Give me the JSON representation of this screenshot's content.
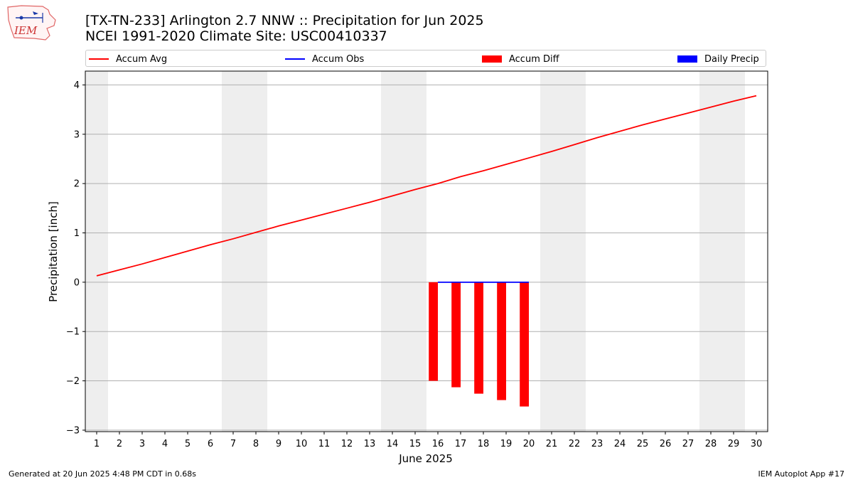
{
  "header": {
    "title_line1": "[TX-TN-233] Arlington 2.7 NNW :: Precipitation for Jun 2025",
    "title_line2": "NCEI 1991-2020 Climate Site: USC00410337"
  },
  "logo": {
    "text": "IEM"
  },
  "legend": {
    "items": [
      {
        "label": "Accum Avg",
        "color": "#ff0000",
        "kind": "line"
      },
      {
        "label": "Accum Obs",
        "color": "#0000ff",
        "kind": "line"
      },
      {
        "label": "Accum Diff",
        "color": "#ff0000",
        "kind": "box"
      },
      {
        "label": "Daily Precip",
        "color": "#0000ff",
        "kind": "box"
      }
    ]
  },
  "footer": {
    "left": "Generated at 20 Jun 2025 4:48 PM CDT in 0.68s",
    "right": "IEM Autoplot App #17"
  },
  "chart_data": {
    "type": "line",
    "xlabel": "June 2025",
    "ylabel": "Precipitation [inch]",
    "xlim": [
      0.5,
      30.5
    ],
    "ylim": [
      -3.03,
      4.28
    ],
    "x_ticks": [
      1,
      2,
      3,
      4,
      5,
      6,
      7,
      8,
      9,
      10,
      11,
      12,
      13,
      14,
      15,
      16,
      17,
      18,
      19,
      20,
      21,
      22,
      23,
      24,
      25,
      26,
      27,
      28,
      29,
      30
    ],
    "y_ticks": [
      -3,
      -2,
      -1,
      0,
      1,
      2,
      3,
      4
    ],
    "y_tick_labels": [
      "−3",
      "−2",
      "−1",
      "0",
      "1",
      "2",
      "3",
      "4"
    ],
    "grid": "horizontal",
    "weekend_shading": [
      [
        0.5,
        1.5
      ],
      [
        6.5,
        8.5
      ],
      [
        13.5,
        15.5
      ],
      [
        20.5,
        22.5
      ],
      [
        27.5,
        29.5
      ]
    ],
    "series": [
      {
        "name": "Accum Avg",
        "type": "line",
        "color": "#ff0000",
        "x": [
          1,
          2,
          3,
          4,
          5,
          6,
          7,
          8,
          9,
          10,
          11,
          12,
          13,
          14,
          15,
          16,
          17,
          18,
          19,
          20,
          21,
          22,
          23,
          24,
          25,
          26,
          27,
          28,
          29,
          30
        ],
        "values": [
          0.13,
          0.25,
          0.37,
          0.5,
          0.63,
          0.76,
          0.88,
          1.01,
          1.14,
          1.26,
          1.38,
          1.5,
          1.62,
          1.75,
          1.88,
          2.0,
          2.14,
          2.26,
          2.39,
          2.52,
          2.65,
          2.79,
          2.93,
          3.06,
          3.19,
          3.31,
          3.43,
          3.55,
          3.67,
          3.78
        ]
      },
      {
        "name": "Accum Obs",
        "type": "line",
        "color": "#0000ff",
        "x": [
          16,
          17,
          18,
          19,
          20
        ],
        "values": [
          0,
          0,
          0,
          0,
          0
        ]
      },
      {
        "name": "Accum Diff",
        "type": "bar",
        "color": "#ff0000",
        "x": [
          16,
          17,
          18,
          19,
          20
        ],
        "values": [
          -2.0,
          -2.13,
          -2.26,
          -2.39,
          -2.52
        ]
      },
      {
        "name": "Daily Precip",
        "type": "bar",
        "color": "#0000ff",
        "x": [
          16,
          17,
          18,
          19,
          20
        ],
        "values": [
          0,
          0,
          0,
          0,
          0
        ]
      }
    ]
  }
}
